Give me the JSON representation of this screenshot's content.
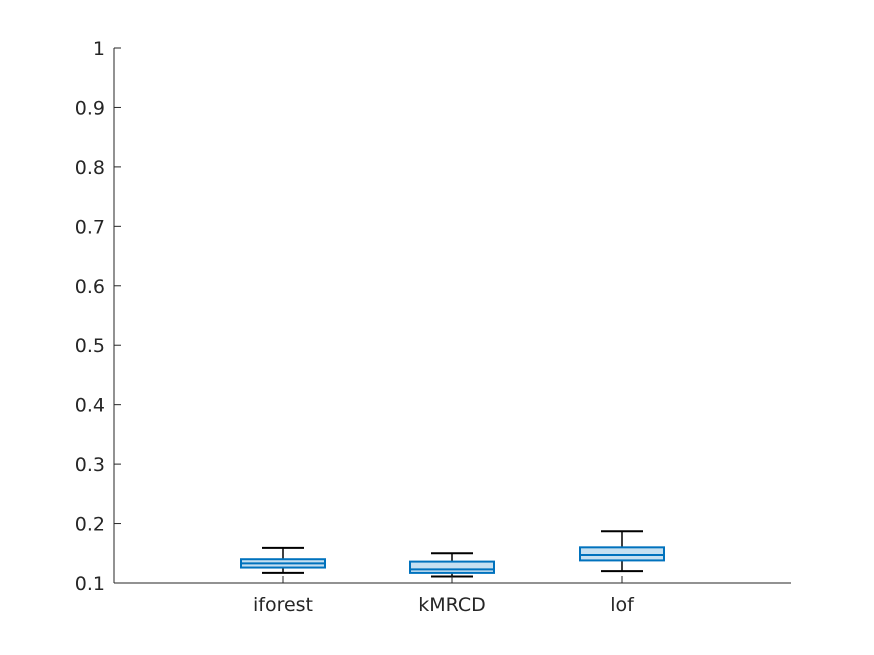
{
  "chart_data": {
    "type": "boxplot",
    "title": "",
    "xlabel": "",
    "ylabel": "",
    "categories": [
      "iforest",
      "kMRCD",
      "lof"
    ],
    "boxes": [
      {
        "category": "iforest",
        "whisker_low": 0.117,
        "q1": 0.126,
        "median": 0.133,
        "q3": 0.14,
        "whisker_high": 0.159
      },
      {
        "category": "kMRCD",
        "whisker_low": 0.111,
        "q1": 0.117,
        "median": 0.123,
        "q3": 0.136,
        "whisker_high": 0.15
      },
      {
        "category": "lof",
        "whisker_low": 0.12,
        "q1": 0.138,
        "median": 0.147,
        "q3": 0.16,
        "whisker_high": 0.187
      }
    ],
    "ylim": [
      0.1,
      1
    ],
    "yticks": [
      0.1,
      0.2,
      0.3,
      0.4,
      0.5,
      0.6,
      0.7,
      0.8,
      0.9,
      1
    ],
    "ytick_labels": [
      "0.1",
      "0.2",
      "0.3",
      "0.4",
      "0.5",
      "0.6",
      "0.7",
      "0.8",
      "0.9",
      "1"
    ],
    "grid": false,
    "colors": {
      "box_edge": "#0072BD",
      "box_fill": "#c6e0f1",
      "whisker": "#000000",
      "axis": "#262626"
    }
  }
}
